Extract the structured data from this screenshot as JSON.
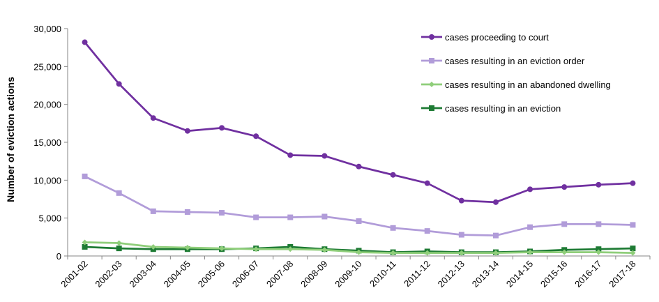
{
  "chart_data": {
    "type": "line",
    "ylabel": "Number of eviction actions",
    "xlabel": "",
    "ylim": [
      0,
      30000
    ],
    "yticks": [
      0,
      5000,
      10000,
      15000,
      20000,
      25000,
      30000
    ],
    "ytick_labels": [
      "0",
      "5,000",
      "10,000",
      "15,000",
      "20,000",
      "25,000",
      "30,000"
    ],
    "grid": false,
    "legend_position": "top-right",
    "categories": [
      "2001-02",
      "2002-03",
      "2003-04",
      "2004-05",
      "2005-06",
      "2006-07",
      "2007-08",
      "2008-09",
      "2009-10",
      "2010-11",
      "2011-12",
      "2012-13",
      "2013-14",
      "2014-15",
      "2015-16",
      "2016-17",
      "2017-18"
    ],
    "series": [
      {
        "name": "cases proceeding to court",
        "color": "#7030a0",
        "marker": "circle",
        "values": [
          28200,
          22700,
          18200,
          16500,
          16900,
          15800,
          13300,
          13200,
          11800,
          10700,
          9600,
          7300,
          7100,
          8800,
          9100,
          9400,
          9600
        ]
      },
      {
        "name": "cases resulting in an eviction order",
        "color": "#b19cd9",
        "marker": "square",
        "values": [
          10500,
          8300,
          5900,
          5800,
          5700,
          5100,
          5100,
          5200,
          4600,
          3700,
          3300,
          2800,
          2700,
          3800,
          4200,
          4200,
          4100
        ]
      },
      {
        "name": "cases resulting in an abandoned dwelling",
        "color": "#8fce7a",
        "marker": "diamond",
        "values": [
          1800,
          1700,
          1200,
          1100,
          1000,
          900,
          900,
          800,
          500,
          400,
          400,
          400,
          400,
          500,
          500,
          500,
          400
        ]
      },
      {
        "name": "cases resulting in an eviction",
        "color": "#1e7b34",
        "marker": "square",
        "values": [
          1200,
          1000,
          900,
          900,
          900,
          1000,
          1200,
          900,
          700,
          500,
          600,
          500,
          500,
          600,
          800,
          900,
          1000
        ]
      }
    ]
  }
}
